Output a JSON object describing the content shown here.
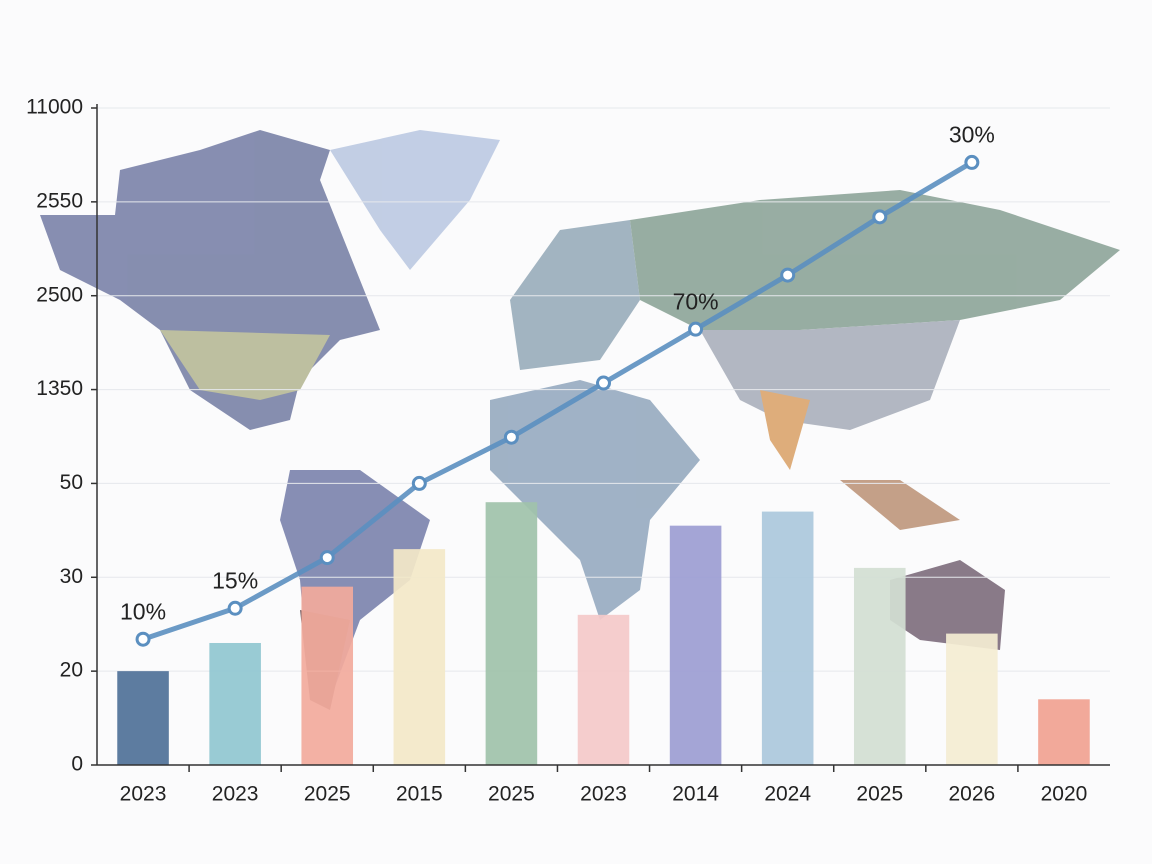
{
  "chart_data": {
    "type": "bar",
    "categories": [
      "2023",
      "2023",
      "2025",
      "2015",
      "2025",
      "2023",
      "2014",
      "2024",
      "2025",
      "2026",
      "2020"
    ],
    "values": [
      20,
      23,
      29,
      36,
      46,
      26,
      41,
      44,
      32,
      24,
      14
    ],
    "colors": [
      "#4f7198",
      "#90c7d0",
      "#f2aa9c",
      "#f3e8c8",
      "#a0c2aa",
      "#f4c9c9",
      "#9c9dd2",
      "#abc8dc",
      "#d2ded3",
      "#f4edd2",
      "#f1a291"
    ],
    "ylim": [
      0,
      11000
    ],
    "yticks": [
      0,
      20,
      30,
      50,
      1350,
      2500,
      2550,
      11000
    ],
    "grid": true,
    "line": {
      "color": "#5b8fc0",
      "values": [
        23.4,
        26.7,
        34.2,
        50,
        690,
        1430,
        2090,
        2511,
        2542,
        6100,
        null
      ],
      "point_labels": [
        "10%",
        "15%",
        null,
        null,
        null,
        null,
        "70%",
        null,
        null,
        "30%",
        null
      ]
    }
  }
}
